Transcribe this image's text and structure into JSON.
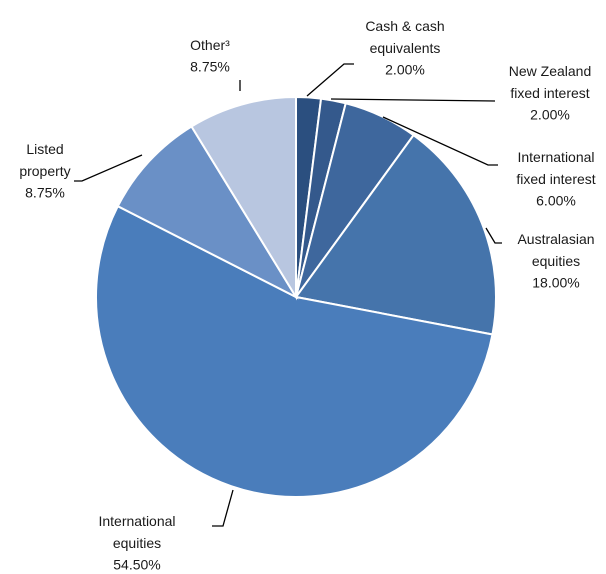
{
  "chart_data": {
    "type": "pie",
    "categories": [
      "Cash & cash\nequivalents",
      "New Zealand\nfixed interest",
      "International\nfixed interest",
      "Australasian\nequities",
      "International\nequities",
      "Listed\nproperty",
      "Other³"
    ],
    "values": [
      2.0,
      2.0,
      6.0,
      18.0,
      54.5,
      8.75,
      8.75
    ],
    "value_labels": [
      "2.00%",
      "2.00%",
      "6.00%",
      "18.00%",
      "54.50%",
      "8.75%",
      "8.75%"
    ],
    "colors": [
      "#2b4f7f",
      "#34598c",
      "#3e679d",
      "#4574ab",
      "#4a7dbb",
      "#6a90c6",
      "#b8c6e0"
    ]
  }
}
